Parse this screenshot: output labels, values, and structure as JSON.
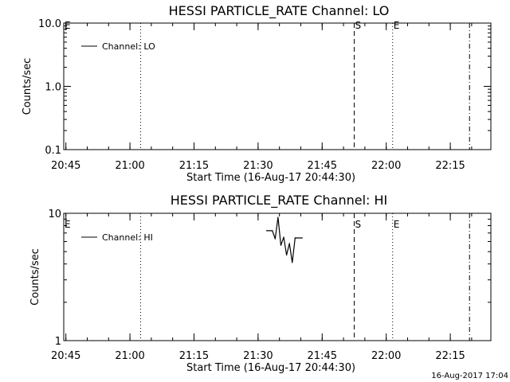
{
  "footer_timestamp": "16-Aug-2017 17:04",
  "chart_data": [
    {
      "type": "line",
      "title": "HESSI PARTICLE_RATE Channel: LO",
      "xlabel": "Start Time (16-Aug-17 20:44:30)",
      "ylabel": "Counts/sec",
      "y_scale": "log",
      "ylim": [
        0.1,
        10.0
      ],
      "y_ticks": [
        "0.1",
        "1.0",
        "10.0"
      ],
      "xlim": [
        "20:44:30",
        "22:24:30"
      ],
      "x_ticks": [
        "20:45",
        "21:00",
        "21:15",
        "21:30",
        "21:45",
        "22:00",
        "22:15"
      ],
      "legend": {
        "position": "top-left",
        "entry": "Channel: LO"
      },
      "series": [
        {
          "name": "Channel: LO",
          "x": [],
          "values": []
        }
      ],
      "markers": [
        {
          "time": "20:44:30",
          "label": "E",
          "style": "none"
        },
        {
          "time": "21:02:30",
          "label": "",
          "style": "dotted"
        },
        {
          "time": "21:52:30",
          "label": "S",
          "style": "dashed"
        },
        {
          "time": "22:01:30",
          "label": "E",
          "style": "dotted"
        },
        {
          "time": "22:19:30",
          "label": "",
          "style": "dashdot"
        }
      ]
    },
    {
      "type": "line",
      "title": "HESSI PARTICLE_RATE Channel: HI",
      "xlabel": "Start Time (16-Aug-17 20:44:30)",
      "ylabel": "Counts/sec",
      "y_scale": "log",
      "ylim": [
        1,
        10
      ],
      "y_ticks": [
        "1",
        "10"
      ],
      "xlim": [
        "20:44:30",
        "22:24:30"
      ],
      "x_ticks": [
        "20:45",
        "21:00",
        "21:15",
        "21:30",
        "21:45",
        "22:00",
        "22:15"
      ],
      "legend": {
        "position": "top-left",
        "entry": "Channel: HI"
      },
      "series": [
        {
          "name": "Channel: HI",
          "x": [
            "21:32:00",
            "21:33:20",
            "21:34:00",
            "21:34:40",
            "21:35:20",
            "21:36:00",
            "21:36:40",
            "21:37:20",
            "21:38:00",
            "21:38:40",
            "21:39:00",
            "21:40:20"
          ],
          "values": [
            7.3,
            7.3,
            6.3,
            9.3,
            5.6,
            6.5,
            4.7,
            5.8,
            4.1,
            6.4,
            6.4,
            6.4
          ]
        }
      ],
      "markers": [
        {
          "time": "20:44:30",
          "label": "E",
          "style": "none"
        },
        {
          "time": "21:02:30",
          "label": "",
          "style": "dotted"
        },
        {
          "time": "21:52:30",
          "label": "S",
          "style": "dashed"
        },
        {
          "time": "22:01:30",
          "label": "E",
          "style": "dotted"
        },
        {
          "time": "22:19:30",
          "label": "",
          "style": "dashdot"
        }
      ]
    }
  ]
}
